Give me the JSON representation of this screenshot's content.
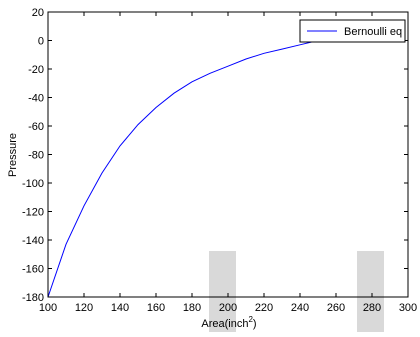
{
  "chart_data": {
    "type": "line",
    "title": "",
    "xlabel": "Area(inch",
    "xlabel_superscript": "2",
    "xlabel_close": ")",
    "ylabel": "Pressure",
    "xlim": [
      100,
      300
    ],
    "ylim": [
      -180,
      20
    ],
    "xticks": [
      100,
      120,
      140,
      160,
      180,
      200,
      220,
      240,
      260,
      280,
      300
    ],
    "yticks": [
      20,
      0,
      -20,
      -40,
      -60,
      -80,
      -100,
      -120,
      -140,
      -160,
      -180
    ],
    "grid": false,
    "legend_position": "top-right",
    "series": [
      {
        "name": "Bernoulli eq",
        "color": "#0000ff",
        "x": [
          100,
          110,
          120,
          130,
          140,
          150,
          160,
          170,
          180,
          190,
          200,
          210,
          220,
          230,
          240,
          250,
          260,
          270
        ],
        "y": [
          -180,
          -143,
          -116,
          -93,
          -74,
          -59,
          -47,
          -37,
          -29,
          -23,
          -18,
          -13,
          -9,
          -6,
          -3,
          0,
          2,
          4
        ]
      }
    ]
  }
}
